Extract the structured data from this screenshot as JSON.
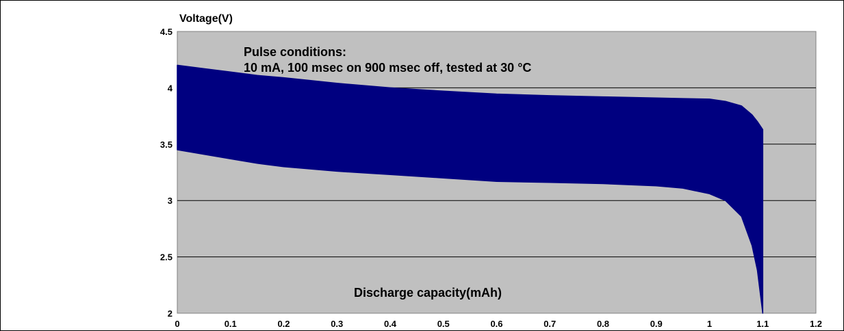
{
  "chart_data": {
    "type": "area",
    "title": "",
    "ylabel": "Voltage(V)",
    "xlabel": "Discharge capacity(mAh)",
    "xlim": [
      0,
      1.2
    ],
    "ylim": [
      2,
      4.5
    ],
    "x_ticks": [
      "0",
      "0.1",
      "0.2",
      "0.3",
      "0.4",
      "0.5",
      "0.6",
      "0.7",
      "0.8",
      "0.9",
      "1",
      "1.1",
      "1.2"
    ],
    "y_ticks": [
      "2",
      "2.5",
      "3",
      "3.5",
      "4",
      "4.5"
    ],
    "grid": "horizontal",
    "annotations": [
      "Pulse conditions:",
      "10 mA, 100 msec on 900 msec off, tested at 30 °C"
    ],
    "series": [
      {
        "x": [
          0,
          0.05,
          0.1,
          0.15,
          0.2,
          0.3,
          0.4,
          0.5,
          0.6,
          0.7,
          0.8,
          0.9,
          0.95,
          1.0,
          1.03,
          1.06,
          1.08,
          1.09,
          1.1
        ],
        "upper": [
          4.2,
          4.17,
          4.14,
          4.11,
          4.09,
          4.04,
          4.0,
          3.97,
          3.945,
          3.93,
          3.92,
          3.91,
          3.905,
          3.9,
          3.88,
          3.84,
          3.76,
          3.7,
          3.63
        ],
        "lower": [
          3.45,
          3.41,
          3.37,
          3.33,
          3.3,
          3.26,
          3.23,
          3.2,
          3.17,
          3.16,
          3.15,
          3.13,
          3.11,
          3.06,
          3.0,
          2.86,
          2.6,
          2.38,
          2.0
        ]
      }
    ],
    "colors": {
      "plot_background": "#c0c0c0",
      "fill": "#000080",
      "grid": "#000000"
    }
  }
}
